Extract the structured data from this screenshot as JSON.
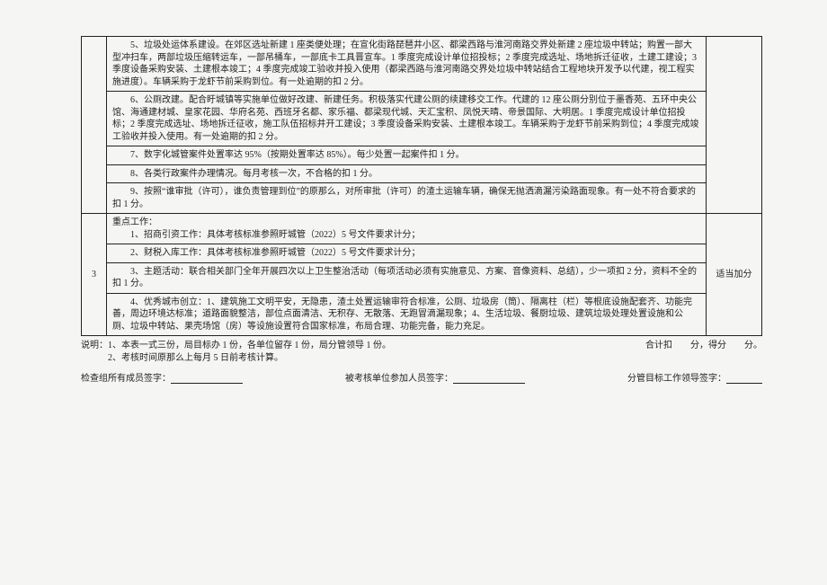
{
  "rows": {
    "r5": "5、垃圾处运体系建设。在郊区选址新建 1 座类便处理；在宣化街路琵琶井小区、都梁西路与淮河南路交界处新建 2 座垃圾中转站；购置一部大型冲扫车，两部垃圾压缩转运车，一部吊桶车，一部底卡工具晋宣车。1 季度完成设计单位招投标；2 季度完成选址、场地拆迁征收，土建工建设；3 季度设备采购安装、土建根本竣工；4 季度完成竣工验收并投入使用（都梁西路与淮河南路交界处垃圾中转站结合工程地块开发予以代建，视工程实施进度）。车辆采购于龙虾节前采购到位。有一处逾期的扣 2 分。",
    "r6": "6、公厕改建。配合盱城镇等实施单位做好改建、新建任务。积极落实代建公厕的续建移交工作。代建的 12 座公厕分别位于墨香苑、五环中央公馆、海通建材城、皇家花园、华府名苑、西班牙名都、家乐福、都梁现代城、天汇宝积、凤悦天晴、帝景国际、大明居。1 季度完成设计单位招投标；2 季度完成选址、场地拆迁征收，施工队伍招标并开工建设；3 季度设备采购安装、土建根本竣工。车辆采购于龙虾节前采购到位；4 季度完成竣工验收并投入使用。有一处逾期的扣 2 分。",
    "r7": "7、数字化城管案件处置率达 95%（按期处置率达 85%）。每少处置一起案件扣 1 分。",
    "r8": "8、各类行政案件办理情况。每月考核一次，不合格的扣 1 分。",
    "r9": "9、按照“谁审批（许可），谁负责管理到位”的原那么，对所审批（许可）的渣土运输车辆，确保无抛洒滴漏污染路面现象。有一处不符合要求的扣 1 分。",
    "num3": "3",
    "kd_title": "重点工作：",
    "kd1": "1、招商引资工作：具体考核标准参照盱城管（2022）5 号文件要求计分；",
    "kd2": "2、财税入库工作：具体考核标准参照盱城管（2022）5 号文件要求计分；",
    "kd3": "3、主题活动：联合相关部门全年开展四次以上卫生整治活动（每项活动必须有实施意见、方案、音像资料、总结），少一项扣 2 分，资料不全的扣 1 分。",
    "kd4": "4、优秀城市创立：1、建筑施工文明平安，无隐患，渣土处置运输审符合标准，公厕、垃圾房（筒）、隔离柱（栏）等根底设施配套齐、功能完善，周边环境达标准；道路面貌整洁，部位点面清洁、无积存、无散落、无跑冒滴漏现象；4、生活垃圾、餐厨垃圾、建筑垃圾处理处置设施和公厕、垃圾中转站、果壳场馆（房）等设施设置符合国家标准，布局合理、功能完备，能力充足。",
    "right_label": "适当加分"
  },
  "notes": {
    "n1": "说明：1、本表一式三份，局目标办 1 份，各单位留存 1 份，局分管领导 1 份。",
    "n2": "　　　2、考核时间原那么上每月 5 日前考核计算。",
    "score": "合计扣　　分，得分　　分。"
  },
  "sign": {
    "s1": "检查组所有成员签字：",
    "s2": "被考核单位参加人员签字：",
    "s3": "分管目标工作领导签字："
  }
}
